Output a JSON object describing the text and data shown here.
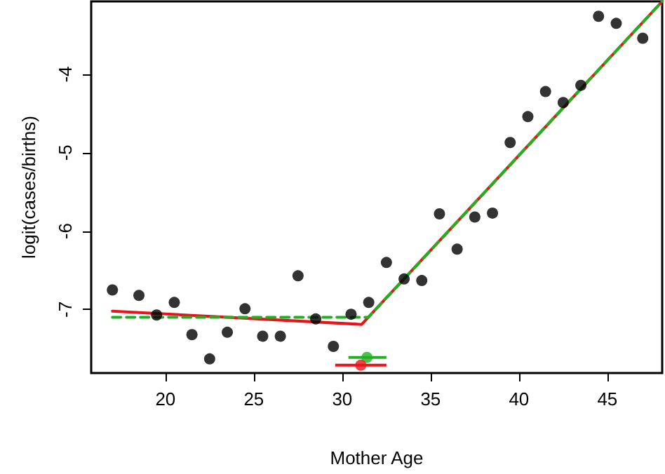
{
  "chart_data": {
    "type": "scatter",
    "xlabel": "Mother Age",
    "ylabel": "logit(cases/births)",
    "xlim": [
      15.8,
      48.1
    ],
    "ylim": [
      -7.81,
      -3.07
    ],
    "xticks": [
      20,
      25,
      30,
      35,
      40,
      45
    ],
    "yticks": [
      -7,
      -6,
      -5,
      -4
    ],
    "grid": false,
    "series": [
      {
        "marker": "circle",
        "color": "#000000",
        "x": [
          17.0,
          18.5,
          19.5,
          20.5,
          21.5,
          22.5,
          23.5,
          24.5,
          25.5,
          26.5,
          27.5,
          28.5,
          29.5,
          30.5,
          31.5,
          32.5,
          33.5,
          34.5,
          35.5,
          36.5,
          37.5,
          38.5,
          39.5,
          40.5,
          41.5,
          42.5,
          43.5,
          44.5,
          45.5,
          47.0
        ],
        "values": [
          -6.75,
          -6.82,
          -7.07,
          -6.91,
          -7.32,
          -7.63,
          -7.29,
          -6.99,
          -7.34,
          -7.34,
          -6.57,
          -7.12,
          -7.47,
          -7.06,
          -6.91,
          -6.4,
          -6.61,
          -6.63,
          -5.78,
          -6.23,
          -5.82,
          -5.77,
          -4.87,
          -4.54,
          -4.22,
          -4.36,
          -4.14,
          -3.26,
          -3.35,
          -3.54
        ]
      },
      {
        "type": "line",
        "marker": "none",
        "line_style": "solid",
        "color": "#e8141c",
        "x": [
          17.0,
          31.1,
          48.1
        ],
        "values": [
          -7.02,
          -7.19,
          -3.07
        ]
      },
      {
        "type": "line",
        "marker": "none",
        "line_style": "dashed",
        "color": "#22b022",
        "x": [
          17.0,
          31.47,
          48.1
        ],
        "values": [
          -7.1,
          -7.1,
          -3.07
        ]
      },
      {
        "type": "scatter",
        "marker": "circle",
        "color": "#22b022",
        "x": [
          31.4
        ],
        "values": [
          -7.61
        ],
        "xerrors": [
          [
            30.35,
            32.5
          ]
        ]
      },
      {
        "type": "scatter",
        "marker": "circle",
        "color": "#e8141c",
        "x": [
          31.05
        ],
        "values": [
          -7.71
        ],
        "xerrors": [
          [
            29.6,
            32.5
          ]
        ]
      }
    ]
  }
}
